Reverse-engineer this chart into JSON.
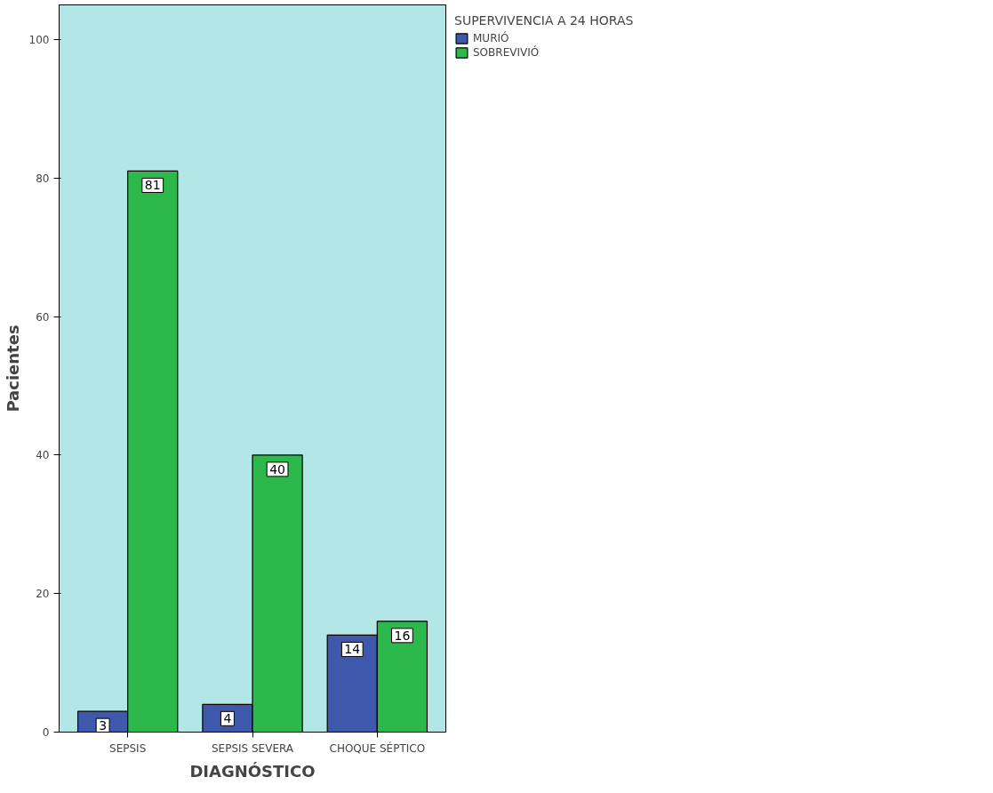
{
  "chart_data": {
    "type": "bar",
    "xlabel": "DIAGNÓSTICO",
    "ylabel": "Pacientes",
    "legend_title": "SUPERVIVENCIA A 24 HORAS",
    "categories": [
      "SEPSIS",
      "SEPSIS SEVERA",
      "CHOQUE SÉPTICO"
    ],
    "series": [
      {
        "name": "MURIÓ",
        "color": "#3e58ac",
        "values": [
          3,
          4,
          14
        ]
      },
      {
        "name": "SOBREVIVIÓ",
        "color": "#2db84b",
        "values": [
          81,
          40,
          16
        ]
      }
    ],
    "ylim": [
      0,
      105
    ],
    "yticks": [
      0,
      20,
      40,
      60,
      80,
      100
    ],
    "grid": false,
    "legend": "top right",
    "data_labels": true
  }
}
